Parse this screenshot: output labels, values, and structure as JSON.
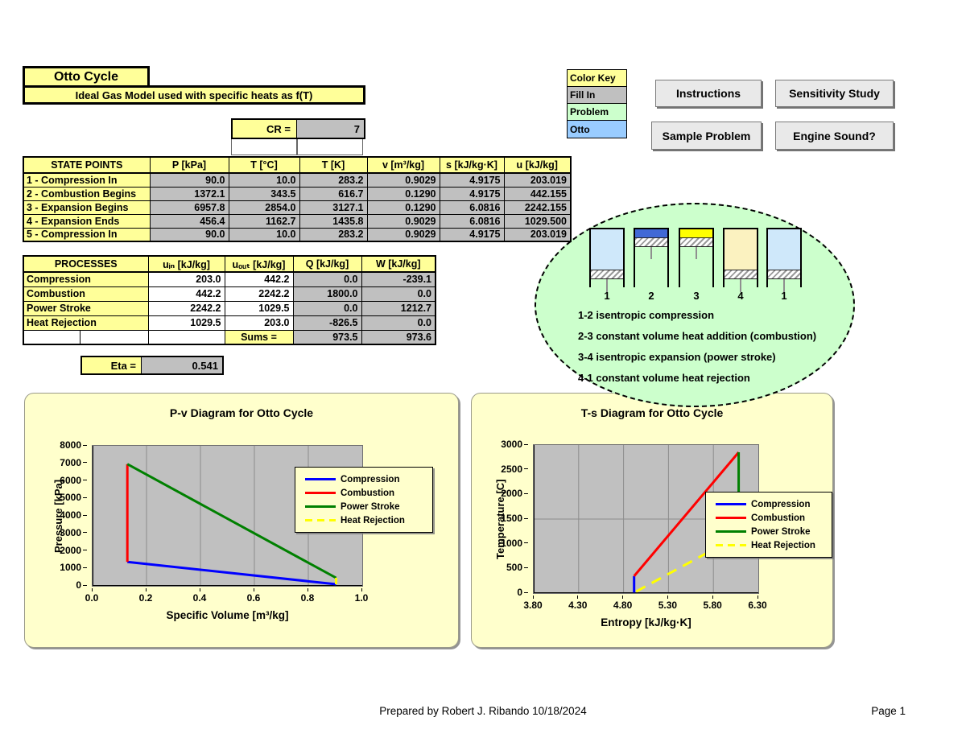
{
  "header": {
    "title": "Otto Cycle",
    "subtitle": "Ideal Gas Model used with specific heats as f(T)",
    "cr_label": "CR =",
    "cr_value": "7"
  },
  "color_key": {
    "items": [
      {
        "label": "Color Key",
        "color": "#FFFF99"
      },
      {
        "label": "Fill In",
        "color": "#C0C0C0"
      },
      {
        "label": "Problem",
        "color": "#CCFFCC"
      },
      {
        "label": "Otto",
        "color": "#99CCFF"
      }
    ]
  },
  "buttons": [
    "Instructions",
    "Sensitivity Study",
    "Sample Problem",
    "Engine Sound?"
  ],
  "state_points_table": {
    "headers": [
      "STATE POINTS",
      "P [kPa]",
      "T [°C]",
      "T [K]",
      "v [m³/kg]",
      "s [kJ/kg·K]",
      "u [kJ/kg]"
    ],
    "rows": [
      {
        "name": "1 - Compression In",
        "values": [
          "90.0",
          "10.0",
          "283.2",
          "0.9029",
          "4.9175",
          "203.019"
        ]
      },
      {
        "name": "2 - Combustion Begins",
        "values": [
          "1372.1",
          "343.5",
          "616.7",
          "0.1290",
          "4.9175",
          "442.155"
        ]
      },
      {
        "name": "3 - Expansion Begins",
        "values": [
          "6957.8",
          "2854.0",
          "3127.1",
          "0.1290",
          "6.0816",
          "2242.155"
        ]
      },
      {
        "name": "4 - Expansion Ends",
        "values": [
          "456.4",
          "1162.7",
          "1435.8",
          "0.9029",
          "6.0816",
          "1029.500"
        ]
      },
      {
        "name": "5 - Compression In",
        "values": [
          "90.0",
          "10.0",
          "283.2",
          "0.9029",
          "4.9175",
          "203.019"
        ]
      }
    ]
  },
  "processes_table": {
    "headers": [
      "PROCESSES",
      "uᵢₙ [kJ/kg]",
      "uₒᵤₜ [kJ/kg]",
      "Q [kJ/kg]",
      "W [kJ/kg]"
    ],
    "rows": [
      {
        "name": "Compression",
        "u_in": "203.0",
        "u_out": "442.2",
        "q": "0.0",
        "w": "-239.1"
      },
      {
        "name": "Combustion",
        "u_in": "442.2",
        "u_out": "2242.2",
        "q": "1800.0",
        "w": "0.0"
      },
      {
        "name": "Power Stroke",
        "u_in": "2242.2",
        "u_out": "1029.5",
        "q": "0.0",
        "w": "1212.7"
      },
      {
        "name": "Heat Rejection",
        "u_in": "1029.5",
        "u_out": "203.0",
        "q": "-826.5",
        "w": "0.0"
      }
    ],
    "sums_label": "Sums =",
    "sums": [
      "973.5",
      "973.6"
    ]
  },
  "eta": {
    "label": "Eta =",
    "value": "0.541"
  },
  "cycle_diagram": {
    "ellipse_color": "#CCFFCC",
    "cylinders": [
      {
        "label": "1",
        "state": "expanded",
        "gas_color": "#CFE8FA"
      },
      {
        "label": "2",
        "state": "compressed",
        "gas_color": "#4169D6"
      },
      {
        "label": "3",
        "state": "compressed",
        "gas_color": "#FFFF00"
      },
      {
        "label": "4",
        "state": "expanded",
        "gas_color": "#FBF2C0"
      },
      {
        "label": "1",
        "state": "expanded",
        "gas_color": "#CFE8FA"
      }
    ],
    "notes": [
      "1-2 isentropic compression",
      "2-3 constant volume heat addition (combustion)",
      "3-4 isentropic expansion (power stroke)",
      "4-1 constant volume heat rejection"
    ]
  },
  "chart_data": [
    {
      "type": "line",
      "title": "P-v Diagram for Otto Cycle",
      "xlabel": "Specific Volume [m³/kg]",
      "ylabel": "Pressure [kPa]",
      "xlim": [
        0.0,
        1.0
      ],
      "ylim": [
        0,
        8000
      ],
      "xticks": [
        "0.0",
        "0.2",
        "0.4",
        "0.6",
        "0.8",
        "1.0"
      ],
      "yticks": [
        0,
        1000,
        2000,
        3000,
        4000,
        5000,
        6000,
        7000,
        8000
      ],
      "grid": {
        "x": [
          0.2,
          0.4,
          0.6,
          0.8
        ],
        "y": []
      },
      "plot_bg": "#C0C0C0",
      "legend_position": "right-overlap",
      "series": [
        {
          "name": "Compression",
          "color": "#0000FF",
          "dashed": false,
          "points": [
            [
              0.9029,
              90
            ],
            [
              0.129,
              1372.1
            ]
          ]
        },
        {
          "name": "Combustion",
          "color": "#FF0000",
          "dashed": false,
          "points": [
            [
              0.129,
              1372.1
            ],
            [
              0.129,
              6957.8
            ]
          ]
        },
        {
          "name": "Power Stroke",
          "color": "#008000",
          "dashed": false,
          "points": [
            [
              0.129,
              6957.8
            ],
            [
              0.9029,
              456.4
            ]
          ]
        },
        {
          "name": "Heat Rejection",
          "color": "#FFFF00",
          "dashed": true,
          "points": [
            [
              0.9029,
              456.4
            ],
            [
              0.9029,
              90
            ]
          ]
        }
      ]
    },
    {
      "type": "line",
      "title": "T-s Diagram for Otto Cycle",
      "xlabel": "Entropy [kJ/kg·K]",
      "ylabel": "Temperature [C]",
      "xlim": [
        3.8,
        6.3
      ],
      "ylim": [
        0,
        3000
      ],
      "xticks": [
        "3.80",
        "4.30",
        "4.80",
        "5.30",
        "5.80",
        "6.30"
      ],
      "yticks": [
        0,
        500,
        1000,
        1500,
        2000,
        2500,
        3000
      ],
      "grid": {
        "x": [
          4.3,
          4.8,
          5.3,
          5.8
        ],
        "y": [
          1500
        ]
      },
      "plot_bg": "#C0C0C0",
      "legend_position": "right-overlap",
      "series": [
        {
          "name": "Compression",
          "color": "#0000FF",
          "dashed": false,
          "points": [
            [
              4.9175,
              10.0
            ],
            [
              4.9175,
              343.5
            ]
          ]
        },
        {
          "name": "Combustion",
          "color": "#FF0000",
          "dashed": false,
          "points": [
            [
              4.9175,
              343.5
            ],
            [
              6.0816,
              2854.0
            ]
          ]
        },
        {
          "name": "Power Stroke",
          "color": "#008000",
          "dashed": false,
          "points": [
            [
              6.0816,
              2854.0
            ],
            [
              6.0816,
              1162.7
            ]
          ]
        },
        {
          "name": "Heat Rejection",
          "color": "#FFFF00",
          "dashed": true,
          "points": [
            [
              6.0816,
              1162.7
            ],
            [
              4.9175,
              10.0
            ]
          ]
        }
      ]
    }
  ],
  "footer": {
    "prepared_by": "Prepared by  Robert J. Ribando 10/18/2024",
    "page": "Page 1"
  }
}
